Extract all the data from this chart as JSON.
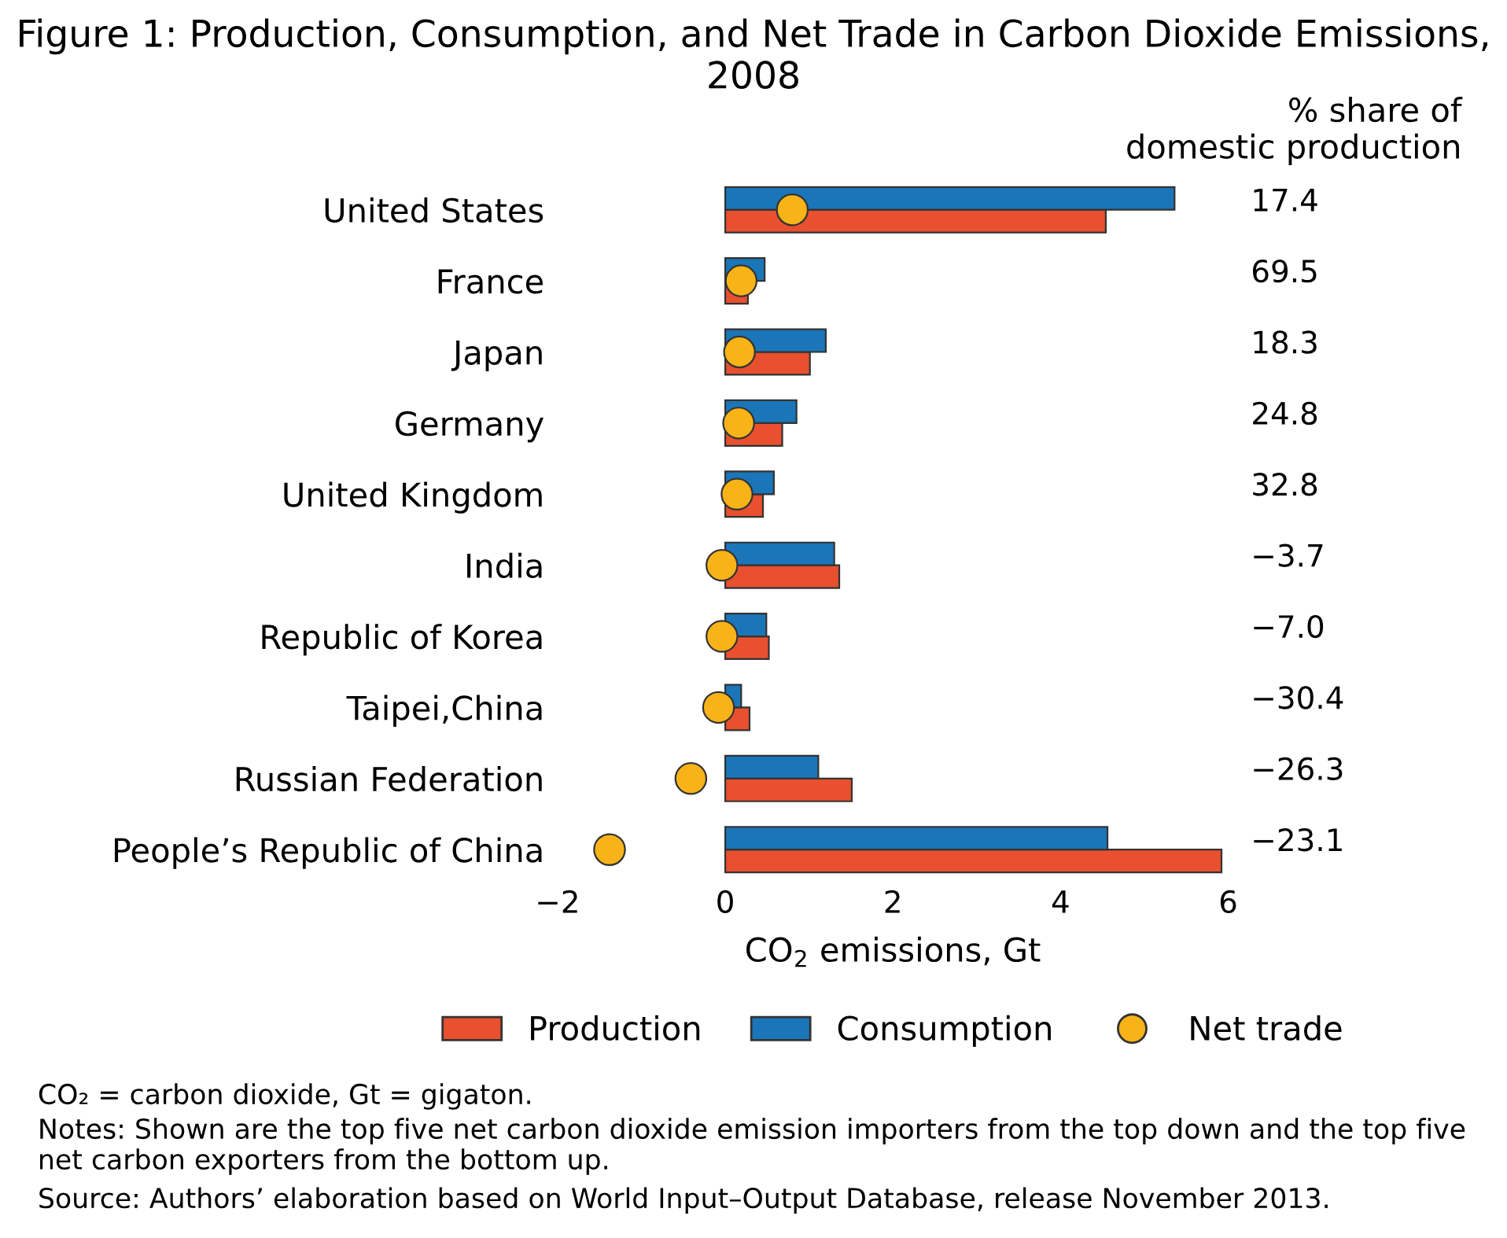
{
  "chart_data": [
    {
      "type": "bar",
      "orientation": "horizontal",
      "title": "Figure 1: Production, Consumption, and Net Trade in Carbon Dioxide Emissions, 2008",
      "categories": [
        "United States",
        "France",
        "Japan",
        "Germany",
        "United Kingdom",
        "India",
        "Republic of Korea",
        "Taipei,China",
        "Russian Federation",
        "People’s Republic of China"
      ],
      "series": [
        {
          "name": "Production",
          "color": "#e8502f",
          "values": [
            4.54,
            0.27,
            1.01,
            0.68,
            0.45,
            1.36,
            0.52,
            0.29,
            1.51,
            5.92
          ]
        },
        {
          "name": "Consumption",
          "color": "#1a76b8",
          "values": [
            5.36,
            0.47,
            1.2,
            0.85,
            0.58,
            1.3,
            0.49,
            0.19,
            1.11,
            4.56
          ]
        },
        {
          "name": "Net trade",
          "type": "scatter",
          "color": "#f7b318",
          "marker": "circle",
          "values": [
            0.8,
            0.19,
            0.17,
            0.16,
            0.14,
            -0.04,
            -0.04,
            -0.08,
            -0.41,
            -1.38
          ]
        }
      ],
      "xlim": [
        -2,
        6
      ],
      "xticks": [
        {
          "value": -2,
          "label": "−2"
        },
        0,
        2,
        4,
        6
      ],
      "xlabel": "CO$_{2}$ emissions, Gt",
      "legend": "bottom",
      "grid": false,
      "annotations": [
        "CO₂ = carbon dioxide, Gt = gigaton.",
        "Notes: Shown are the top five net carbon dioxide emission importers from the top down and the top five net carbon exporters from the bottom up.",
        "Source: Authors’ elaboration based on World Input–Output Database, release November 2013."
      ]
    },
    {
      "type": "other",
      "title": "% share of\ndomestic production",
      "value_labels": [
        "17.4",
        "69.5",
        "18.3",
        "24.8",
        "32.8",
        "−3.7",
        "−7.0",
        "−30.4",
        "−26.3",
        "−23.1"
      ]
    }
  ]
}
